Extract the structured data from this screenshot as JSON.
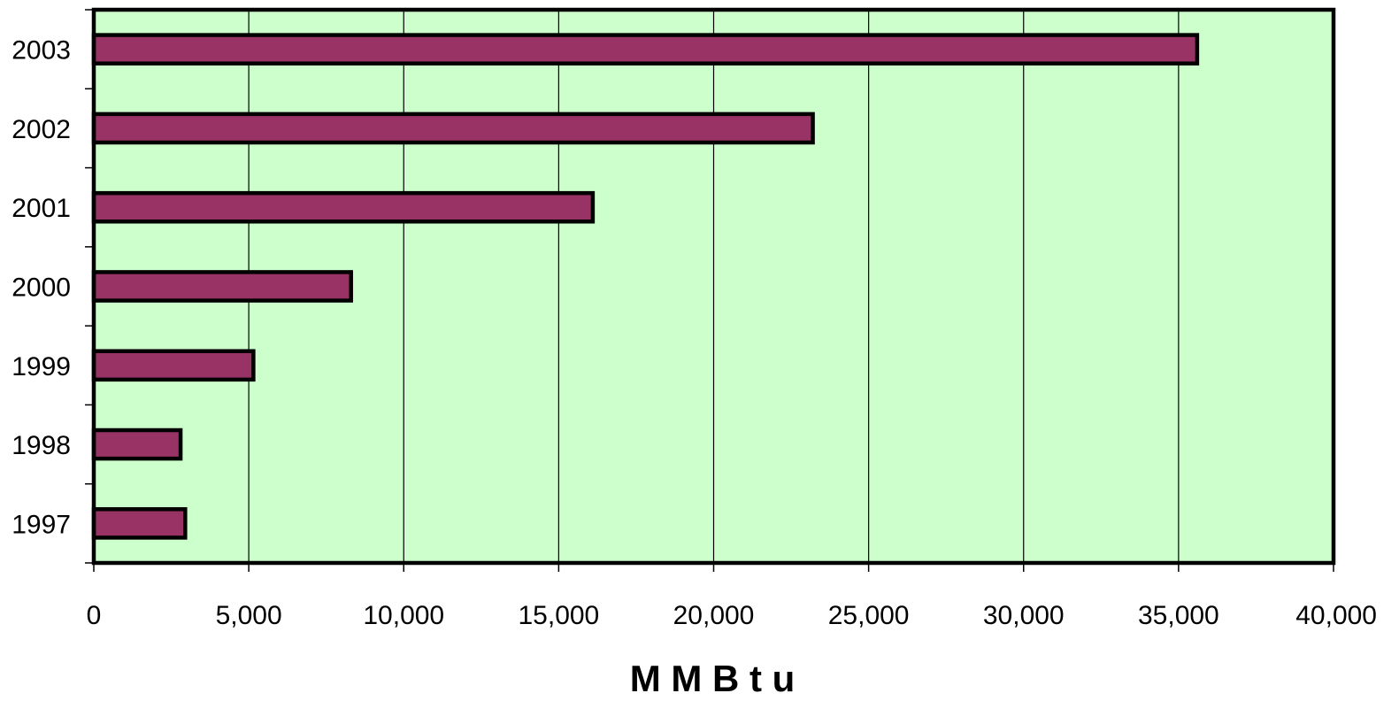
{
  "chart_data": {
    "type": "bar",
    "orientation": "horizontal",
    "categories": [
      "1997",
      "1998",
      "1999",
      "2000",
      "2001",
      "2002",
      "2003"
    ],
    "values": [
      2950,
      2800,
      5150,
      8300,
      16100,
      23200,
      35600
    ],
    "x_ticks": [
      "0",
      "5,000",
      "10,000",
      "15,000",
      "20,000",
      "25,000",
      "30,000",
      "35,000",
      "40,000"
    ],
    "x_tick_values": [
      0,
      5000,
      10000,
      15000,
      20000,
      25000,
      30000,
      35000,
      40000
    ],
    "xlim": [
      0,
      40000
    ],
    "xlabel": "M M B t u",
    "ylabel": "",
    "title": "",
    "grid": "vertical",
    "legend": "none",
    "colors": {
      "bar_fill": "#993366",
      "bar_stroke": "#000000",
      "plot_background": "#ccffcc",
      "gridline": "#000000"
    }
  }
}
